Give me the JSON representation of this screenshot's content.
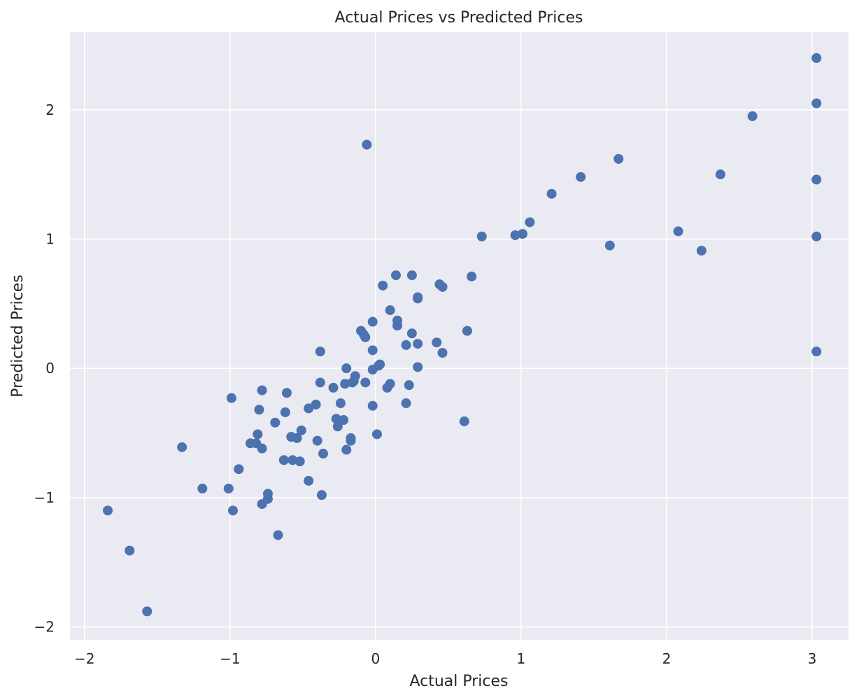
{
  "chart_data": {
    "type": "scatter",
    "title": "Actual Prices vs Predicted Prices",
    "xlabel": "Actual Prices",
    "ylabel": "Predicted Prices",
    "xlim": [
      -2.1,
      3.25
    ],
    "ylim": [
      -2.1,
      2.6
    ],
    "xticks": [
      -2,
      -1,
      0,
      1,
      2,
      3
    ],
    "yticks": [
      -2,
      -1,
      0,
      1,
      2
    ],
    "xtick_labels": [
      "−2",
      "−1",
      "0",
      "1",
      "2",
      "3"
    ],
    "ytick_labels": [
      "−2",
      "−1",
      "0",
      "1",
      "2"
    ],
    "grid": true,
    "background_color": "#eaeaf2",
    "grid_color": "#ffffff",
    "marker_color": "#4c72b0",
    "points": [
      [
        3.03,
        2.4
      ],
      [
        3.03,
        2.05
      ],
      [
        2.59,
        1.95
      ],
      [
        -0.06,
        1.73
      ],
      [
        1.67,
        1.62
      ],
      [
        2.37,
        1.5
      ],
      [
        3.03,
        1.46
      ],
      [
        1.41,
        1.48
      ],
      [
        1.21,
        1.35
      ],
      [
        1.06,
        1.13
      ],
      [
        2.08,
        1.06
      ],
      [
        1.01,
        1.04
      ],
      [
        0.96,
        1.03
      ],
      [
        0.73,
        1.02
      ],
      [
        3.03,
        1.02
      ],
      [
        1.61,
        0.95
      ],
      [
        2.24,
        0.91
      ],
      [
        0.14,
        0.72
      ],
      [
        0.25,
        0.72
      ],
      [
        0.66,
        0.71
      ],
      [
        0.05,
        0.64
      ],
      [
        0.44,
        0.65
      ],
      [
        0.46,
        0.63
      ],
      [
        0.29,
        0.55
      ],
      [
        0.29,
        0.54
      ],
      [
        0.1,
        0.45
      ],
      [
        -0.02,
        0.36
      ],
      [
        0.15,
        0.37
      ],
      [
        0.15,
        0.33
      ],
      [
        -0.1,
        0.29
      ],
      [
        -0.08,
        0.26
      ],
      [
        -0.07,
        0.24
      ],
      [
        0.25,
        0.27
      ],
      [
        0.63,
        0.29
      ],
      [
        0.21,
        0.18
      ],
      [
        0.29,
        0.19
      ],
      [
        0.42,
        0.2
      ],
      [
        -0.02,
        0.14
      ],
      [
        -0.38,
        0.13
      ],
      [
        0.46,
        0.12
      ],
      [
        3.03,
        0.13
      ],
      [
        0.03,
        0.03
      ],
      [
        0.02,
        0.02
      ],
      [
        -0.2,
        0.0
      ],
      [
        0.29,
        0.01
      ],
      [
        -0.02,
        -0.01
      ],
      [
        -0.14,
        -0.06
      ],
      [
        -0.07,
        -0.11
      ],
      [
        -0.15,
        -0.1
      ],
      [
        -0.16,
        -0.11
      ],
      [
        -0.21,
        -0.12
      ],
      [
        -0.38,
        -0.11
      ],
      [
        0.1,
        -0.12
      ],
      [
        0.08,
        -0.15
      ],
      [
        0.23,
        -0.13
      ],
      [
        -0.29,
        -0.15
      ],
      [
        -0.78,
        -0.17
      ],
      [
        -0.61,
        -0.19
      ],
      [
        -0.99,
        -0.23
      ],
      [
        -0.24,
        -0.27
      ],
      [
        0.21,
        -0.27
      ],
      [
        -0.41,
        -0.28
      ],
      [
        -0.46,
        -0.31
      ],
      [
        -0.8,
        -0.32
      ],
      [
        -0.62,
        -0.34
      ],
      [
        -0.02,
        -0.29
      ],
      [
        -0.27,
        -0.39
      ],
      [
        -0.22,
        -0.4
      ],
      [
        0.61,
        -0.41
      ],
      [
        -0.69,
        -0.42
      ],
      [
        -0.26,
        -0.45
      ],
      [
        -0.51,
        -0.48
      ],
      [
        -0.81,
        -0.51
      ],
      [
        -0.58,
        -0.53
      ],
      [
        -0.54,
        -0.54
      ],
      [
        -0.17,
        -0.54
      ],
      [
        -0.17,
        -0.56
      ],
      [
        -0.4,
        -0.56
      ],
      [
        0.01,
        -0.51
      ],
      [
        -0.86,
        -0.58
      ],
      [
        -0.82,
        -0.58
      ],
      [
        -1.33,
        -0.61
      ],
      [
        -0.78,
        -0.62
      ],
      [
        -0.2,
        -0.63
      ],
      [
        -0.36,
        -0.66
      ],
      [
        -0.63,
        -0.71
      ],
      [
        -0.57,
        -0.71
      ],
      [
        -0.52,
        -0.72
      ],
      [
        -0.94,
        -0.78
      ],
      [
        -0.46,
        -0.87
      ],
      [
        -1.19,
        -0.93
      ],
      [
        -1.01,
        -0.93
      ],
      [
        -0.74,
        -0.97
      ],
      [
        -0.74,
        -1.01
      ],
      [
        -0.37,
        -0.98
      ],
      [
        -0.78,
        -1.05
      ],
      [
        -1.84,
        -1.1
      ],
      [
        -0.98,
        -1.1
      ],
      [
        -0.67,
        -1.29
      ],
      [
        -1.69,
        -1.41
      ],
      [
        -1.57,
        -1.88
      ]
    ]
  }
}
